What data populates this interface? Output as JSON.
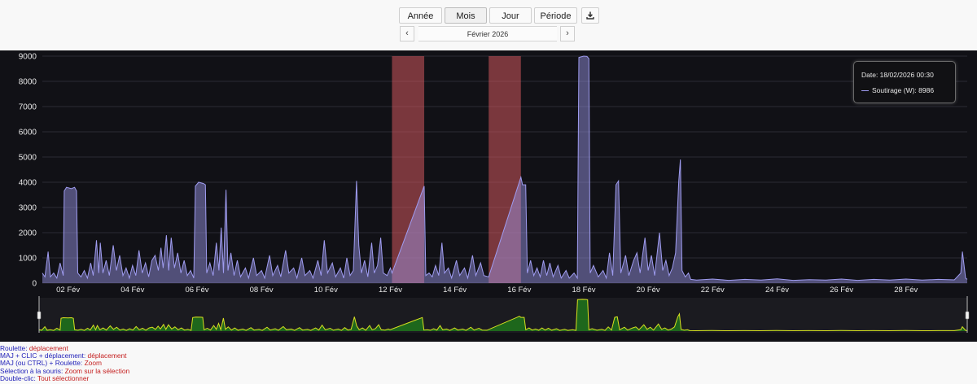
{
  "toolbar": {
    "buttons": [
      "Année",
      "Mois",
      "Jour",
      "Période"
    ],
    "active": "Mois",
    "download_icon": "download-icon"
  },
  "nav": {
    "prev": "‹",
    "next": "›",
    "period_label": "Février 2026"
  },
  "tooltip": {
    "date_line": "Date: 18/02/2026 00:30",
    "series_line": "Soutirage (W): 8986"
  },
  "help": [
    {
      "key": "Roulette",
      "value": "déplacement"
    },
    {
      "key": "MAJ + CLIC + déplacement",
      "value": "déplacement"
    },
    {
      "key": "MAJ (ou CTRL) + Roulette",
      "value": "Zoom"
    },
    {
      "key": "Sélection à la souris",
      "value": "Zoom sur la sélection"
    },
    {
      "key": "Double-clic",
      "value": "Tout sélectionner"
    }
  ],
  "chart_data": {
    "type": "area",
    "xlabel": "",
    "ylabel": "",
    "series_name": "Soutirage (W)",
    "series_color": "#9f9cf0",
    "navigator_color": "#d8e020",
    "band_color": "#d2585f",
    "ylim": [
      0,
      9000
    ],
    "yticks": [
      0,
      1000,
      2000,
      3000,
      4000,
      5000,
      6000,
      7000,
      8000,
      9000
    ],
    "x_range_days": [
      1.2,
      29.9
    ],
    "xticks": [
      {
        "day": 2,
        "label": "02 Fév"
      },
      {
        "day": 4,
        "label": "04 Fév"
      },
      {
        "day": 6,
        "label": "06 Fév"
      },
      {
        "day": 8,
        "label": "08 Fév"
      },
      {
        "day": 10,
        "label": "10 Fév"
      },
      {
        "day": 12,
        "label": "12 Fév"
      },
      {
        "day": 14,
        "label": "14 Fév"
      },
      {
        "day": 16,
        "label": "16 Fév"
      },
      {
        "day": 18,
        "label": "18 Fév"
      },
      {
        "day": 20,
        "label": "20 Fév"
      },
      {
        "day": 22,
        "label": "22 Fév"
      },
      {
        "day": 24,
        "label": "24 Fév"
      },
      {
        "day": 26,
        "label": "26 Fév"
      },
      {
        "day": 28,
        "label": "28 Fév"
      }
    ],
    "missing_bands": [
      {
        "from": 12.05,
        "to": 13.05
      },
      {
        "from": 15.05,
        "to": 16.05
      }
    ],
    "points": [
      [
        1.2,
        400
      ],
      [
        1.28,
        250
      ],
      [
        1.38,
        1250
      ],
      [
        1.45,
        250
      ],
      [
        1.55,
        400
      ],
      [
        1.65,
        200
      ],
      [
        1.75,
        800
      ],
      [
        1.85,
        300
      ],
      [
        1.88,
        3650
      ],
      [
        1.95,
        3800
      ],
      [
        2.1,
        3750
      ],
      [
        2.2,
        3800
      ],
      [
        2.26,
        3650
      ],
      [
        2.3,
        400
      ],
      [
        2.4,
        250
      ],
      [
        2.5,
        500
      ],
      [
        2.6,
        200
      ],
      [
        2.7,
        800
      ],
      [
        2.78,
        300
      ],
      [
        2.88,
        1700
      ],
      [
        2.95,
        400
      ],
      [
        3.0,
        1600
      ],
      [
        3.08,
        400
      ],
      [
        3.18,
        900
      ],
      [
        3.28,
        300
      ],
      [
        3.4,
        1500
      ],
      [
        3.5,
        500
      ],
      [
        3.6,
        1100
      ],
      [
        3.7,
        300
      ],
      [
        3.8,
        600
      ],
      [
        3.9,
        200
      ],
      [
        4.0,
        700
      ],
      [
        4.1,
        300
      ],
      [
        4.2,
        1300
      ],
      [
        4.3,
        400
      ],
      [
        4.4,
        800
      ],
      [
        4.5,
        250
      ],
      [
        4.6,
        900
      ],
      [
        4.7,
        1100
      ],
      [
        4.8,
        500
      ],
      [
        4.88,
        1400
      ],
      [
        4.95,
        600
      ],
      [
        5.05,
        1900
      ],
      [
        5.12,
        500
      ],
      [
        5.2,
        1800
      ],
      [
        5.3,
        600
      ],
      [
        5.4,
        1200
      ],
      [
        5.5,
        400
      ],
      [
        5.6,
        900
      ],
      [
        5.7,
        300
      ],
      [
        5.8,
        500
      ],
      [
        5.9,
        200
      ],
      [
        5.95,
        3850
      ],
      [
        6.05,
        4000
      ],
      [
        6.2,
        3950
      ],
      [
        6.26,
        3900
      ],
      [
        6.3,
        400
      ],
      [
        6.4,
        800
      ],
      [
        6.5,
        300
      ],
      [
        6.6,
        1600
      ],
      [
        6.68,
        500
      ],
      [
        6.75,
        2200
      ],
      [
        6.82,
        400
      ],
      [
        6.9,
        3700
      ],
      [
        6.96,
        500
      ],
      [
        7.05,
        1200
      ],
      [
        7.15,
        300
      ],
      [
        7.25,
        900
      ],
      [
        7.35,
        250
      ],
      [
        7.5,
        600
      ],
      [
        7.6,
        200
      ],
      [
        7.75,
        1000
      ],
      [
        7.85,
        300
      ],
      [
        8.0,
        500
      ],
      [
        8.1,
        200
      ],
      [
        8.25,
        1100
      ],
      [
        8.35,
        300
      ],
      [
        8.5,
        700
      ],
      [
        8.6,
        250
      ],
      [
        8.75,
        1300
      ],
      [
        8.85,
        400
      ],
      [
        9.0,
        600
      ],
      [
        9.1,
        200
      ],
      [
        9.25,
        1000
      ],
      [
        9.35,
        300
      ],
      [
        9.5,
        500
      ],
      [
        9.6,
        200
      ],
      [
        9.75,
        900
      ],
      [
        9.85,
        300
      ],
      [
        9.95,
        1700
      ],
      [
        10.05,
        400
      ],
      [
        10.2,
        800
      ],
      [
        10.3,
        250
      ],
      [
        10.45,
        600
      ],
      [
        10.55,
        200
      ],
      [
        10.65,
        1000
      ],
      [
        10.75,
        300
      ],
      [
        10.85,
        500
      ],
      [
        10.95,
        4050
      ],
      [
        11.02,
        1500
      ],
      [
        11.1,
        400
      ],
      [
        11.2,
        900
      ],
      [
        11.3,
        250
      ],
      [
        11.42,
        1600
      ],
      [
        11.5,
        400
      ],
      [
        11.6,
        700
      ],
      [
        11.7,
        1800
      ],
      [
        11.78,
        400
      ],
      [
        11.9,
        300
      ],
      [
        12.0,
        600
      ],
      [
        12.05,
        400
      ],
      [
        13.05,
        3850
      ],
      [
        13.1,
        300
      ],
      [
        13.2,
        400
      ],
      [
        13.3,
        250
      ],
      [
        13.4,
        700
      ],
      [
        13.5,
        300
      ],
      [
        13.6,
        1600
      ],
      [
        13.68,
        400
      ],
      [
        13.8,
        600
      ],
      [
        13.9,
        200
      ],
      [
        14.05,
        900
      ],
      [
        14.15,
        300
      ],
      [
        14.3,
        600
      ],
      [
        14.4,
        200
      ],
      [
        14.55,
        1100
      ],
      [
        14.65,
        300
      ],
      [
        14.8,
        800
      ],
      [
        14.9,
        300
      ],
      [
        15.05,
        250
      ],
      [
        16.05,
        4200
      ],
      [
        16.1,
        3900
      ],
      [
        16.2,
        3900
      ],
      [
        16.25,
        400
      ],
      [
        16.35,
        900
      ],
      [
        16.45,
        300
      ],
      [
        16.55,
        600
      ],
      [
        16.65,
        250
      ],
      [
        16.75,
        900
      ],
      [
        16.85,
        300
      ],
      [
        16.95,
        800
      ],
      [
        17.05,
        250
      ],
      [
        17.2,
        700
      ],
      [
        17.3,
        200
      ],
      [
        17.45,
        500
      ],
      [
        17.55,
        200
      ],
      [
        17.7,
        400
      ],
      [
        17.8,
        200
      ],
      [
        17.85,
        8950
      ],
      [
        18.0,
        9000
      ],
      [
        18.1,
        8986
      ],
      [
        18.16,
        8900
      ],
      [
        18.2,
        400
      ],
      [
        18.3,
        700
      ],
      [
        18.45,
        250
      ],
      [
        18.6,
        500
      ],
      [
        18.7,
        200
      ],
      [
        18.8,
        1200
      ],
      [
        18.9,
        300
      ],
      [
        19.0,
        3900
      ],
      [
        19.08,
        4050
      ],
      [
        19.15,
        400
      ],
      [
        19.3,
        1100
      ],
      [
        19.4,
        300
      ],
      [
        19.55,
        900
      ],
      [
        19.65,
        1200
      ],
      [
        19.75,
        400
      ],
      [
        19.9,
        1800
      ],
      [
        20.0,
        500
      ],
      [
        20.1,
        1100
      ],
      [
        20.2,
        300
      ],
      [
        20.35,
        2000
      ],
      [
        20.45,
        500
      ],
      [
        20.55,
        900
      ],
      [
        20.65,
        300
      ],
      [
        20.75,
        600
      ],
      [
        20.85,
        1200
      ],
      [
        20.95,
        4050
      ],
      [
        21.0,
        4900
      ],
      [
        21.05,
        500
      ],
      [
        21.15,
        250
      ],
      [
        21.25,
        400
      ],
      [
        21.32,
        150
      ],
      [
        21.5,
        120
      ],
      [
        22.0,
        160
      ],
      [
        22.5,
        110
      ],
      [
        23.0,
        150
      ],
      [
        23.5,
        120
      ],
      [
        24.0,
        170
      ],
      [
        24.5,
        110
      ],
      [
        25.0,
        140
      ],
      [
        25.5,
        120
      ],
      [
        26.0,
        160
      ],
      [
        26.5,
        110
      ],
      [
        27.0,
        150
      ],
      [
        27.5,
        120
      ],
      [
        28.0,
        160
      ],
      [
        28.5,
        120
      ],
      [
        29.0,
        150
      ],
      [
        29.5,
        130
      ],
      [
        29.7,
        400
      ],
      [
        29.75,
        1250
      ],
      [
        29.85,
        200
      ],
      [
        29.9,
        150
      ]
    ]
  }
}
